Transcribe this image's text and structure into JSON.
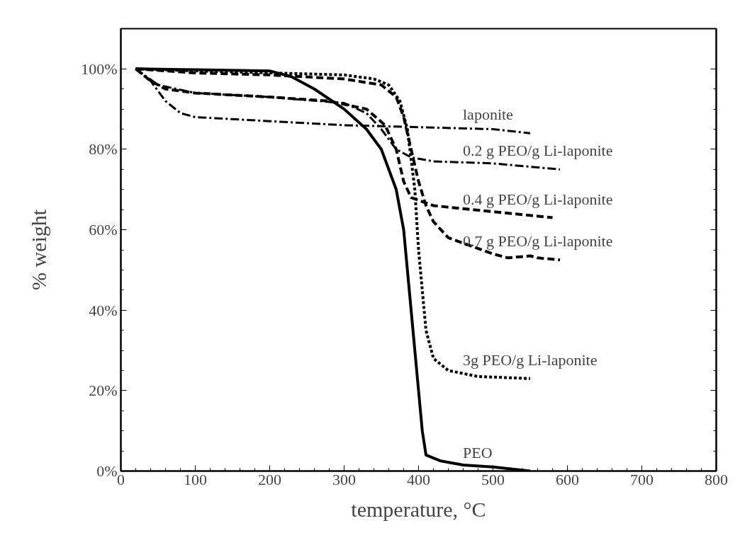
{
  "chart_data": {
    "type": "line",
    "xlabel": "temperature, °C",
    "ylabel": "% weight",
    "xlim": [
      0,
      800
    ],
    "ylim": [
      0,
      110
    ],
    "xticks": [
      0,
      100,
      200,
      300,
      400,
      500,
      600,
      700,
      800
    ],
    "yticks": [
      {
        "value": 0,
        "label": "0%"
      },
      {
        "value": 20,
        "label": "20%"
      },
      {
        "value": 40,
        "label": "40%"
      },
      {
        "value": 60,
        "label": "60%"
      },
      {
        "value": 80,
        "label": "80%"
      },
      {
        "value": 100,
        "label": "100%"
      }
    ],
    "grid": false,
    "legend": false,
    "marker": "none",
    "series": [
      {
        "name": "laponite",
        "color": "#000000",
        "line_style": "dashdot",
        "x": [
          20,
          40,
          60,
          80,
          100,
          200,
          300,
          400,
          500,
          550
        ],
        "values": [
          100,
          97,
          92,
          89,
          88,
          87,
          86,
          85.5,
          85,
          84
        ]
      },
      {
        "name": "0.2 g PEO/g Li-laponite",
        "color": "#000000",
        "line_style": "dashdot",
        "x": [
          20,
          50,
          100,
          200,
          300,
          330,
          350,
          370,
          390,
          420,
          500,
          590
        ],
        "values": [
          100,
          96,
          94,
          93,
          91.5,
          89,
          85,
          80,
          78,
          77,
          76.5,
          75
        ]
      },
      {
        "name": "0.4 g PEO/g Li-laponite",
        "color": "#000000",
        "line_style": "dashed",
        "x": [
          20,
          40,
          60,
          100,
          200,
          280,
          330,
          355,
          370,
          380,
          390,
          420,
          500,
          580
        ],
        "values": [
          100,
          97,
          95,
          94,
          93,
          92,
          90,
          86,
          80,
          72,
          68,
          66,
          64.5,
          63
        ]
      },
      {
        "name": "0.7 g PEO/g Li-laponite",
        "color": "#000000",
        "line_style": "dashed",
        "x": [
          20,
          100,
          200,
          300,
          350,
          370,
          380,
          390,
          400,
          410,
          420,
          440,
          470,
          500,
          520,
          550,
          560,
          590
        ],
        "values": [
          100,
          99,
          98.5,
          97.5,
          96,
          93,
          88,
          80,
          72,
          66,
          62,
          58,
          56,
          54,
          53,
          53.5,
          53,
          52.5
        ]
      },
      {
        "name": "3g PEO/g Li-laponite",
        "color": "#000000",
        "line_style": "dotted",
        "x": [
          20,
          100,
          200,
          300,
          340,
          360,
          375,
          385,
          395,
          400,
          405,
          410,
          420,
          440,
          480,
          550
        ],
        "values": [
          100,
          99.5,
          99,
          98.5,
          97.5,
          96,
          92,
          85,
          70,
          55,
          45,
          35,
          28,
          25,
          23.5,
          23
        ]
      },
      {
        "name": "PEO",
        "color": "#000000",
        "line_style": "solid",
        "x": [
          20,
          100,
          200,
          230,
          260,
          300,
          330,
          350,
          370,
          380,
          390,
          400,
          405,
          410,
          430,
          460,
          500,
          550
        ],
        "values": [
          100,
          99.8,
          99.5,
          98,
          95,
          90,
          85,
          80,
          70,
          60,
          40,
          20,
          10,
          4,
          2.5,
          1.5,
          1,
          0
        ]
      }
    ]
  }
}
